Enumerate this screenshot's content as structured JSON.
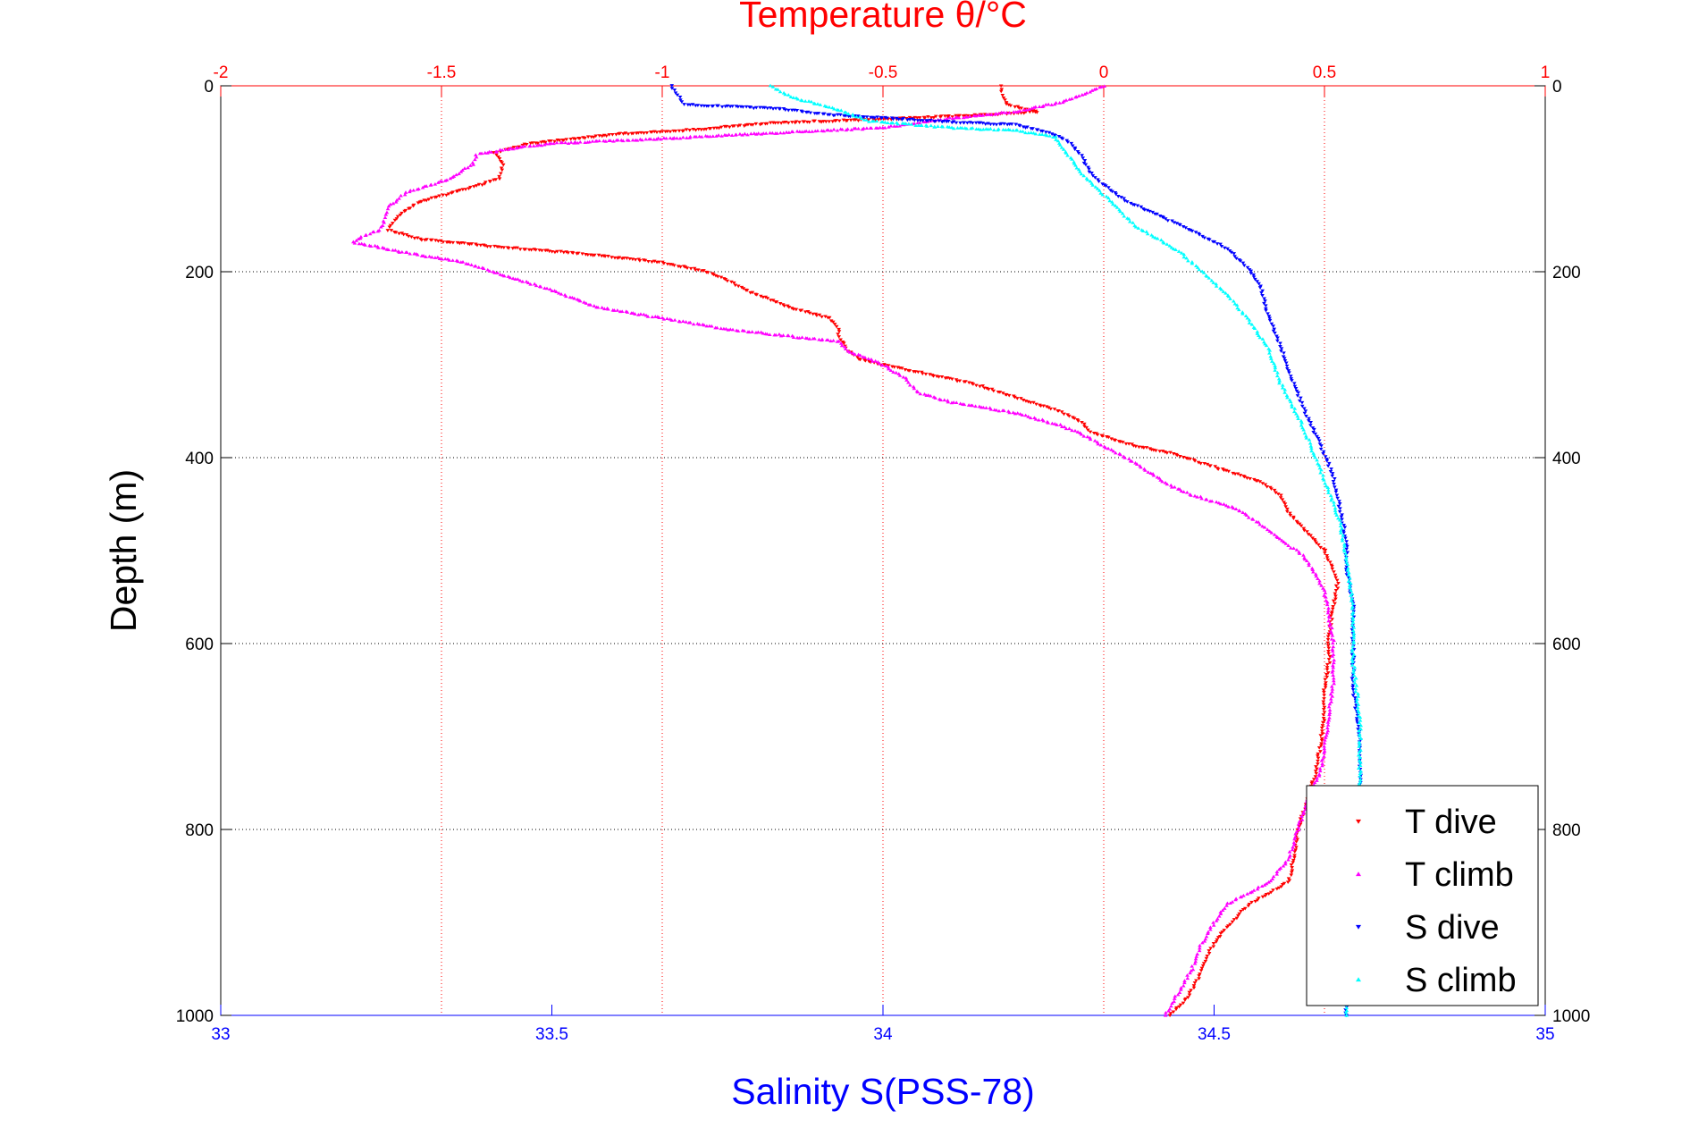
{
  "chart_data": {
    "type": "scatter",
    "title": "Temperature θ/°C",
    "xlabel": "Salinity S(PSS-78)",
    "ylabel": "Depth (m)",
    "x_top_axis": {
      "label": "Temperature θ/°C",
      "range": [
        -2,
        1
      ],
      "ticks": [
        "-2",
        "-1.5",
        "-1",
        "-0.5",
        "0",
        "0.5",
        "1"
      ],
      "color": "#ff0000"
    },
    "x_bottom_axis": {
      "label": "Salinity S(PSS-78)",
      "range": [
        33,
        35
      ],
      "ticks": [
        "33",
        "33.5",
        "34",
        "34.5",
        "35"
      ],
      "color": "#0000ff"
    },
    "y_axis": {
      "range": [
        0,
        1000
      ],
      "reversed": true,
      "ticks": [
        "0",
        "200",
        "400",
        "600",
        "800",
        "1000"
      ]
    },
    "grid": true,
    "legend_position": "bottom-right",
    "legend": [
      {
        "label": "T dive",
        "color": "#ff0000",
        "marker": "triangle-down"
      },
      {
        "label": "T climb",
        "color": "#ff00ff",
        "marker": "triangle-up"
      },
      {
        "label": "S dive",
        "color": "#0000ff",
        "marker": "triangle-down"
      },
      {
        "label": "S climb",
        "color": "#00ffff",
        "marker": "triangle-up"
      }
    ],
    "series": [
      {
        "name": "T dive",
        "axis": "temperature",
        "color": "#ff0000",
        "marker": "triangle-down",
        "points": [
          [
            -0.23,
            0
          ],
          [
            -0.23,
            10
          ],
          [
            -0.22,
            20
          ],
          [
            -0.15,
            28
          ],
          [
            -0.3,
            32
          ],
          [
            -0.5,
            36
          ],
          [
            -0.75,
            40
          ],
          [
            -0.95,
            48
          ],
          [
            -1.1,
            52
          ],
          [
            -1.3,
            62
          ],
          [
            -1.38,
            72
          ],
          [
            -1.36,
            85
          ],
          [
            -1.37,
            100
          ],
          [
            -1.45,
            112
          ],
          [
            -1.55,
            125
          ],
          [
            -1.6,
            140
          ],
          [
            -1.62,
            155
          ],
          [
            -1.55,
            165
          ],
          [
            -1.4,
            172
          ],
          [
            -1.2,
            180
          ],
          [
            -1.0,
            190
          ],
          [
            -0.9,
            200
          ],
          [
            -0.85,
            210
          ],
          [
            -0.8,
            222
          ],
          [
            -0.7,
            240
          ],
          [
            -0.62,
            250
          ],
          [
            -0.6,
            262
          ],
          [
            -0.6,
            270
          ],
          [
            -0.58,
            285
          ],
          [
            -0.55,
            295
          ],
          [
            -0.45,
            305
          ],
          [
            -0.3,
            320
          ],
          [
            -0.2,
            335
          ],
          [
            -0.1,
            350
          ],
          [
            -0.05,
            362
          ],
          [
            -0.03,
            372
          ],
          [
            0.05,
            385
          ],
          [
            0.15,
            395
          ],
          [
            0.25,
            410
          ],
          [
            0.35,
            425
          ],
          [
            0.4,
            440
          ],
          [
            0.42,
            460
          ],
          [
            0.46,
            480
          ],
          [
            0.5,
            500
          ],
          [
            0.52,
            520
          ],
          [
            0.53,
            535
          ],
          [
            0.52,
            560
          ],
          [
            0.51,
            590
          ],
          [
            0.51,
            620
          ],
          [
            0.5,
            650
          ],
          [
            0.5,
            680
          ],
          [
            0.49,
            710
          ],
          [
            0.48,
            740
          ],
          [
            0.46,
            770
          ],
          [
            0.44,
            800
          ],
          [
            0.43,
            830
          ],
          [
            0.42,
            855
          ],
          [
            0.37,
            870
          ],
          [
            0.33,
            880
          ],
          [
            0.3,
            895
          ],
          [
            0.27,
            910
          ],
          [
            0.24,
            930
          ],
          [
            0.22,
            955
          ],
          [
            0.19,
            980
          ],
          [
            0.15,
            1000
          ]
        ]
      },
      {
        "name": "T climb",
        "axis": "temperature",
        "color": "#ff00ff",
        "marker": "triangle-up",
        "points": [
          [
            0.0,
            0
          ],
          [
            -0.05,
            10
          ],
          [
            -0.1,
            18
          ],
          [
            -0.2,
            28
          ],
          [
            -0.35,
            35
          ],
          [
            -0.5,
            45
          ],
          [
            -0.8,
            52
          ],
          [
            -1.05,
            58
          ],
          [
            -1.25,
            62
          ],
          [
            -1.35,
            68
          ],
          [
            -1.42,
            74
          ],
          [
            -1.43,
            85
          ],
          [
            -1.48,
            100
          ],
          [
            -1.58,
            115
          ],
          [
            -1.62,
            130
          ],
          [
            -1.63,
            145
          ],
          [
            -1.64,
            155
          ],
          [
            -1.68,
            162
          ],
          [
            -1.7,
            168
          ],
          [
            -1.6,
            178
          ],
          [
            -1.45,
            190
          ],
          [
            -1.35,
            205
          ],
          [
            -1.25,
            220
          ],
          [
            -1.15,
            238
          ],
          [
            -1.0,
            250
          ],
          [
            -0.85,
            262
          ],
          [
            -0.7,
            270
          ],
          [
            -0.6,
            275
          ],
          [
            -0.58,
            285
          ],
          [
            -0.5,
            300
          ],
          [
            -0.45,
            315
          ],
          [
            -0.42,
            330
          ],
          [
            -0.35,
            340
          ],
          [
            -0.2,
            352
          ],
          [
            -0.1,
            365
          ],
          [
            -0.05,
            375
          ],
          [
            0.0,
            388
          ],
          [
            0.05,
            400
          ],
          [
            0.1,
            415
          ],
          [
            0.15,
            430
          ],
          [
            0.2,
            440
          ],
          [
            0.3,
            455
          ],
          [
            0.35,
            470
          ],
          [
            0.4,
            488
          ],
          [
            0.45,
            505
          ],
          [
            0.48,
            525
          ],
          [
            0.5,
            545
          ],
          [
            0.51,
            570
          ],
          [
            0.52,
            600
          ],
          [
            0.52,
            640
          ],
          [
            0.51,
            680
          ],
          [
            0.5,
            710
          ],
          [
            0.49,
            740
          ],
          [
            0.46,
            770
          ],
          [
            0.44,
            800
          ],
          [
            0.42,
            830
          ],
          [
            0.38,
            855
          ],
          [
            0.33,
            868
          ],
          [
            0.28,
            880
          ],
          [
            0.25,
            900
          ],
          [
            0.22,
            925
          ],
          [
            0.2,
            950
          ],
          [
            0.17,
            975
          ],
          [
            0.14,
            1000
          ]
        ]
      },
      {
        "name": "S dive",
        "axis": "salinity",
        "color": "#0000ff",
        "marker": "triangle-down",
        "points": [
          [
            33.68,
            0
          ],
          [
            33.69,
            10
          ],
          [
            33.7,
            20
          ],
          [
            33.85,
            25
          ],
          [
            33.9,
            30
          ],
          [
            34.08,
            38
          ],
          [
            34.2,
            42
          ],
          [
            34.25,
            50
          ],
          [
            34.28,
            60
          ],
          [
            34.3,
            75
          ],
          [
            34.31,
            90
          ],
          [
            34.33,
            105
          ],
          [
            34.37,
            125
          ],
          [
            34.45,
            150
          ],
          [
            34.52,
            175
          ],
          [
            34.55,
            195
          ],
          [
            34.57,
            215
          ],
          [
            34.58,
            245
          ],
          [
            34.6,
            280
          ],
          [
            34.62,
            320
          ],
          [
            34.64,
            355
          ],
          [
            34.66,
            385
          ],
          [
            34.68,
            420
          ],
          [
            34.69,
            455
          ],
          [
            34.7,
            490
          ],
          [
            34.7,
            520
          ],
          [
            34.71,
            560
          ],
          [
            34.71,
            600
          ],
          [
            34.71,
            650
          ],
          [
            34.72,
            700
          ],
          [
            34.72,
            750
          ],
          [
            34.71,
            800
          ],
          [
            34.71,
            850
          ],
          [
            34.7,
            900
          ],
          [
            34.7,
            950
          ],
          [
            34.7,
            1000
          ]
        ]
      },
      {
        "name": "S climb",
        "axis": "salinity",
        "color": "#00ffff",
        "marker": "triangle-up",
        "points": [
          [
            33.83,
            0
          ],
          [
            33.86,
            12
          ],
          [
            33.93,
            25
          ],
          [
            33.98,
            38
          ],
          [
            34.1,
            45
          ],
          [
            34.2,
            48
          ],
          [
            34.26,
            55
          ],
          [
            34.28,
            75
          ],
          [
            34.3,
            95
          ],
          [
            34.33,
            115
          ],
          [
            34.38,
            150
          ],
          [
            34.45,
            180
          ],
          [
            34.52,
            225
          ],
          [
            34.55,
            250
          ],
          [
            34.58,
            280
          ],
          [
            34.6,
            320
          ],
          [
            34.63,
            360
          ],
          [
            34.65,
            395
          ],
          [
            34.67,
            430
          ],
          [
            34.69,
            470
          ],
          [
            34.7,
            510
          ],
          [
            34.71,
            560
          ],
          [
            34.71,
            620
          ],
          [
            34.72,
            680
          ],
          [
            34.72,
            740
          ],
          [
            34.72,
            800
          ],
          [
            34.71,
            860
          ],
          [
            34.71,
            920
          ],
          [
            34.7,
            960
          ],
          [
            34.7,
            1000
          ]
        ]
      }
    ]
  }
}
